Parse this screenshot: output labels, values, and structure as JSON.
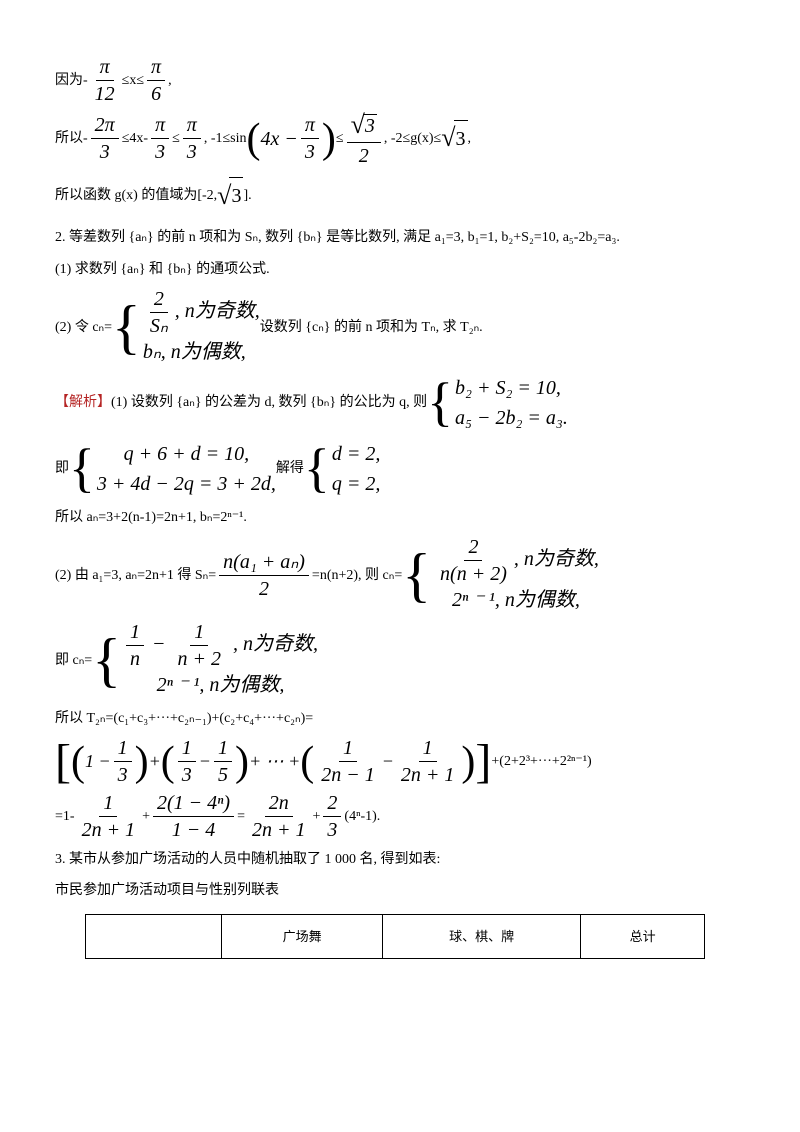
{
  "l1_a": "因为-",
  "l1_frac1_num": "π",
  "l1_frac1_den": "12",
  "l1_b": "≤x≤",
  "l1_frac2_num": "π",
  "l1_frac2_den": "6",
  "l1_c": ",",
  "l2_a": "所以-",
  "l2_f1_num": "2π",
  "l2_f1_den": "3",
  "l2_b": "≤4x-",
  "l2_f2_num": "π",
  "l2_f2_den": "3",
  "l2_c": "≤",
  "l2_f3_num": "π",
  "l2_f3_den": "3",
  "l2_d": ", -1≤sin",
  "l2_inner": "4x − ",
  "l2_f4_num": "π",
  "l2_f4_den": "3",
  "l2_e": "≤",
  "l2_f5_num_rad": "3",
  "l2_f5_den": "2",
  "l2_f": ", -2≤g(x)≤",
  "l2_rad": "3",
  "l2_g": ",",
  "l3_a": "所以函数 g(x) 的值域为[-2, ",
  "l3_rad": "3",
  "l3_b": "].",
  "p2": "2. 等差数列 {aₙ} 的前 n 项和为 Sₙ, 数列 {bₙ} 是等比数列, 满足 a₁=3, b₁=1, b₂+S₂=10, a₅-2b₂=a₃.",
  "p2_1": "(1) 求数列 {aₙ} 和 {bₙ} 的通项公式.",
  "p2_2a": "(2) 令 cₙ=",
  "p2_2_row1a_num": "2",
  "p2_2_row1a_den": "Sₙ",
  "p2_2_row1b": ", n为奇数,",
  "p2_2_row2": "bₙ, n为偶数,",
  "p2_2b": " 设数列 {cₙ} 的前 n 项和为 Tₙ, 求 T₂ₙ.",
  "sol_label": "【解析】",
  "sol1_a": "(1) 设数列 {aₙ} 的公差为 d, 数列 {bₙ} 的公比为 q, 则",
  "sys1_r1": "b₂ + S₂ = 10,",
  "sys1_r2": "a₅ − 2b₂ = a₃.",
  "sol1_b": "即",
  "sys2_r1": "q + 6 + d = 10,",
  "sys2_r2": "3 + 4d − 2q = 3 + 2d,",
  "sol1_c": " 解得",
  "sys3_r1": "d = 2,",
  "sys3_r2": "q = 2,",
  "sol1_d": "所以 aₙ=3+2(n-1)=2n+1, bₙ=2ⁿ⁻¹.",
  "sol2_a": "(2) 由 a₁=3, aₙ=2n+1 得 Sₙ=",
  "sol2_f1_num": "n(a₁ + aₙ)",
  "sol2_f1_den": "2",
  "sol2_b": "=n(n+2), 则 cₙ=",
  "sol2_sys_r1_num": "2",
  "sol2_sys_r1_den": "n(n + 2)",
  "sol2_sys_r1_tail": ", n为奇数,",
  "sol2_sys_r2": "2ⁿ ⁻ ¹, n为偶数,",
  "sol2_c": "即 cₙ=",
  "sol2_sys2_r1_a_num": "1",
  "sol2_sys2_r1_a_den": "n",
  "sol2_sys2_r1_mid": " − ",
  "sol2_sys2_r1_b_num": "1",
  "sol2_sys2_r1_b_den": "n + 2",
  "sol2_sys2_r1_tail": ", n为奇数,",
  "sol2_sys2_r2": "2ⁿ ⁻ ¹, n为偶数,",
  "sol2_d": "所以 T₂ₙ=(c₁+c₃+···+c₂ₙ₋₁)+(c₂+c₄+···+c₂ₙ)=",
  "big_t1_num": "1",
  "big_t1_den": "3",
  "big_t2a_num": "1",
  "big_t2a_den": "3",
  "big_t2b_num": "1",
  "big_t2b_den": "5",
  "big_dots": " + ⋯ + ",
  "big_t3a_num": "1",
  "big_t3a_den": "2n − 1",
  "big_t3b_num": "1",
  "big_t3b_den": "2n + 1",
  "big_tail": "+(2+2³+···+2²ⁿ⁻¹)",
  "res_a": "=1-",
  "res_f1_num": "1",
  "res_f1_den": "2n + 1",
  "res_b": "+",
  "res_f2_num": "2(1 − 4ⁿ)",
  "res_f2_den": "1 − 4",
  "res_c": "=",
  "res_f3_num": "2n",
  "res_f3_den": "2n + 1",
  "res_d": "+",
  "res_f4_num": "2",
  "res_f4_den": "3",
  "res_e": "(4ⁿ-1).",
  "p3": "3. 某市从参加广场活动的人员中随机抽取了 1 000 名, 得到如表:",
  "p3_sub": "市民参加广场活动项目与性别列联表",
  "th1": "",
  "th2": "广场舞",
  "th3": "球、棋、牌",
  "th4": "总计"
}
